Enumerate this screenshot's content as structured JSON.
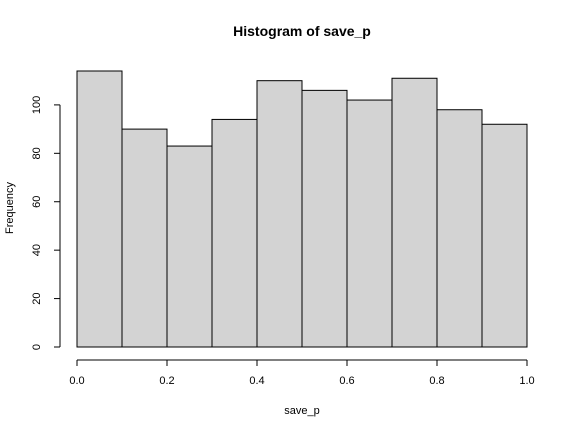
{
  "chart_data": {
    "type": "bar",
    "title": "Histogram of save_p",
    "xlabel": "save_p",
    "ylabel": "Frequency",
    "bin_edges": [
      0.0,
      0.1,
      0.2,
      0.3,
      0.4,
      0.5,
      0.6,
      0.7,
      0.8,
      0.9,
      1.0
    ],
    "values": [
      114,
      90,
      83,
      94,
      110,
      106,
      102,
      111,
      98,
      92
    ],
    "xlim": [
      0.0,
      1.0
    ],
    "ylim": [
      0,
      114
    ],
    "x_ticks": [
      "0.0",
      "0.2",
      "0.4",
      "0.6",
      "0.8",
      "1.0"
    ],
    "y_ticks": [
      "0",
      "20",
      "40",
      "60",
      "80",
      "100"
    ],
    "bar_color": "#d3d3d3",
    "grid": false,
    "legend": "none"
  }
}
